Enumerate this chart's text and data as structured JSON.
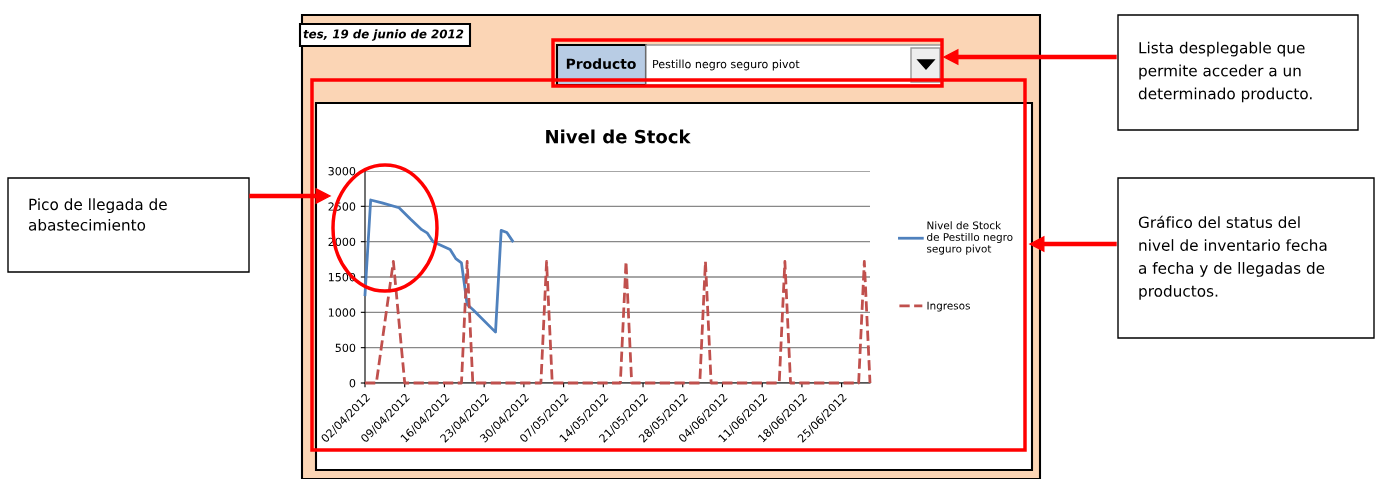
{
  "chart_data": {
    "type": "line",
    "title": "Nivel de Stock",
    "series": [
      {
        "name": "Nivel de Stock\nde Pestillo negro\nseguro pivot",
        "color": "#4f81bd",
        "line_style": "solid",
        "x": [
          "2012-04-02",
          "2012-04-03",
          "2012-04-05",
          "2012-04-08",
          "2012-04-10",
          "2012-04-12",
          "2012-04-13",
          "2012-04-14",
          "2012-04-17",
          "2012-04-18",
          "2012-04-19",
          "2012-04-20",
          "2012-04-21",
          "2012-04-25",
          "2012-04-26",
          "2012-04-27",
          "2012-04-28"
        ],
        "values": [
          1250,
          2590,
          2550,
          2480,
          2320,
          2170,
          2120,
          2000,
          1890,
          1760,
          1700,
          1110,
          1040,
          720,
          2160,
          2130,
          2010
        ]
      },
      {
        "name": "Ingresos",
        "color": "#c0504d",
        "line_style": "dashed",
        "x": [
          "2012-04-02",
          "2012-04-04",
          "2012-04-07",
          "2012-04-09",
          "2012-04-19",
          "2012-04-20",
          "2012-04-21",
          "2012-05-03",
          "2012-05-04",
          "2012-05-05",
          "2012-05-17",
          "2012-05-18",
          "2012-05-19",
          "2012-05-31",
          "2012-06-01",
          "2012-06-02",
          "2012-06-14",
          "2012-06-15",
          "2012-06-16",
          "2012-06-28",
          "2012-06-29",
          "2012-06-30"
        ],
        "values": [
          0,
          0,
          1720,
          0,
          0,
          1720,
          0,
          0,
          1720,
          0,
          0,
          1720,
          0,
          0,
          1720,
          0,
          0,
          1720,
          0,
          0,
          1720,
          0
        ]
      }
    ],
    "xlim": [
      "2012-04-02",
      "2012-06-30"
    ],
    "xticks": [
      {
        "value": "2012-04-02",
        "label": "02/04/2012"
      },
      {
        "value": "2012-04-09",
        "label": "09/04/2012"
      },
      {
        "value": "2012-04-16",
        "label": "16/04/2012"
      },
      {
        "value": "2012-04-23",
        "label": "23/04/2012"
      },
      {
        "value": "2012-04-30",
        "label": "30/04/2012"
      },
      {
        "value": "2012-05-07",
        "label": "07/05/2012"
      },
      {
        "value": "2012-05-14",
        "label": "14/05/2012"
      },
      {
        "value": "2012-05-21",
        "label": "21/05/2012"
      },
      {
        "value": "2012-05-28",
        "label": "28/05/2012"
      },
      {
        "value": "2012-06-04",
        "label": "04/06/2012"
      },
      {
        "value": "2012-06-11",
        "label": "11/06/2012"
      },
      {
        "value": "2012-06-18",
        "label": "18/06/2012"
      },
      {
        "value": "2012-06-25",
        "label": "25/06/2012"
      }
    ],
    "ylim": [
      0,
      3000
    ],
    "yticks": [
      0,
      500,
      1000,
      1500,
      2000,
      2500,
      3000
    ],
    "grid": "y",
    "legend": "right",
    "marker": "none",
    "annotations": [
      "tes, 19 de junio de 2012",
      "Producto",
      "Pestillo negro seguro pivot",
      "Lista desplegable que\npermite acceder a un\ndeterminado producto.",
      "Pico de llegada de\nabastecimiento",
      "Gráfico del status del\nnivel de inventario fecha\na fecha y de llegadas de\nproductos."
    ]
  }
}
